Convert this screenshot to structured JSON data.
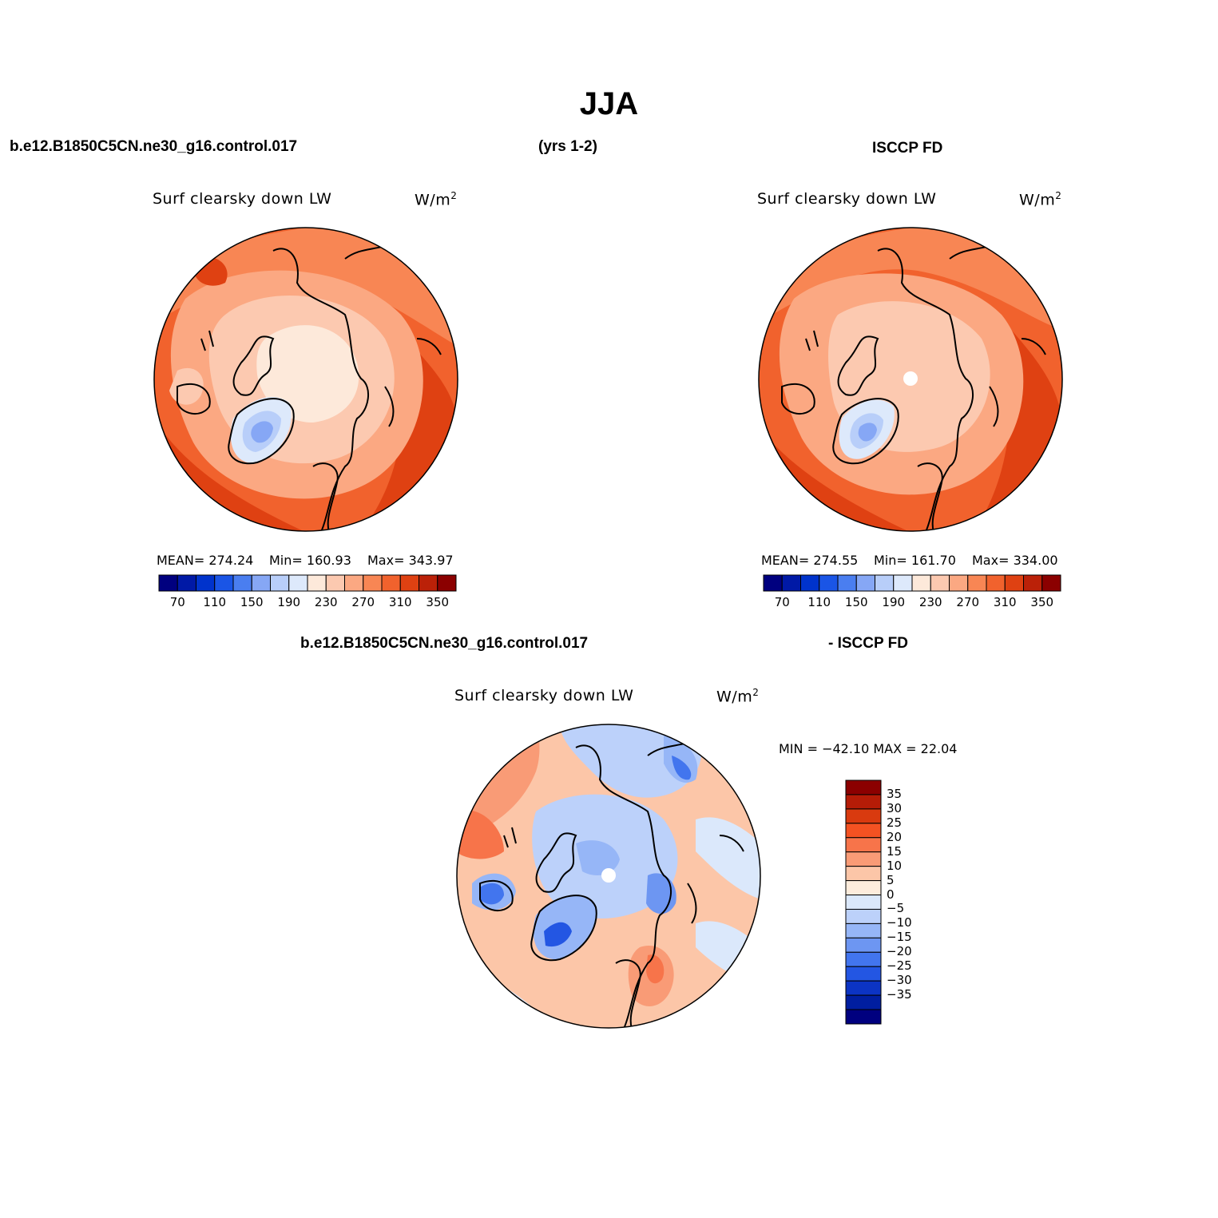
{
  "title": "JJA",
  "top_left": {
    "case_label": "b.e12.B1850C5CN.ne30_g16.control.017",
    "years_label": "(yrs 1-2)",
    "plot_title": "Surf clearsky down LW",
    "units_base": "W/m",
    "units_sup": "2",
    "mean_text": "MEAN= 274.24",
    "min_text": "Min= 160.93",
    "max_text": "Max= 343.97"
  },
  "top_right": {
    "case_label": "ISCCP FD",
    "plot_title": "Surf clearsky down LW",
    "units_base": "W/m",
    "units_sup": "2",
    "mean_text": "MEAN= 274.55",
    "min_text": "Min= 161.70",
    "max_text": "Max= 334.00"
  },
  "bottom": {
    "case_label": "b.e12.B1850C5CN.ne30_g16.control.017",
    "diff_label": "- ISCCP FD",
    "plot_title": "Surf clearsky down LW",
    "units_base": "W/m",
    "units_sup": "2",
    "minmax_text": "MIN = −42.10 MAX =  22.04"
  },
  "colorbar_abs": {
    "colors": [
      "#00007f",
      "#0019a6",
      "#0033cc",
      "#1a55e6",
      "#4a7ef0",
      "#86a7f5",
      "#b8cef9",
      "#dde9fb",
      "#fde9da",
      "#fcc9b0",
      "#fba882",
      "#f88654",
      "#f1622d",
      "#df4112",
      "#bb2108",
      "#8b0000"
    ],
    "tick_labels": [
      "70",
      "110",
      "150",
      "190",
      "230",
      "270",
      "310",
      "350"
    ]
  },
  "colorbar_diff": {
    "colors": [
      "#8b0000",
      "#b51c07",
      "#d93a0f",
      "#f45222",
      "#f7744a",
      "#f99b76",
      "#fcc6a8",
      "#fdecdc",
      "#dbe8fb",
      "#bcd1fa",
      "#96b6f7",
      "#6d96f2",
      "#4275ee",
      "#2356e3",
      "#0c34c4",
      "#001ea0",
      "#00007f"
    ],
    "tick_labels": [
      "35",
      "30",
      "25",
      "20",
      "15",
      "10",
      "5",
      "0",
      "−5",
      "−10",
      "−15",
      "−20",
      "−25",
      "−30",
      "−35"
    ]
  },
  "icons": [
    "polar-map-coastline-icon"
  ]
}
